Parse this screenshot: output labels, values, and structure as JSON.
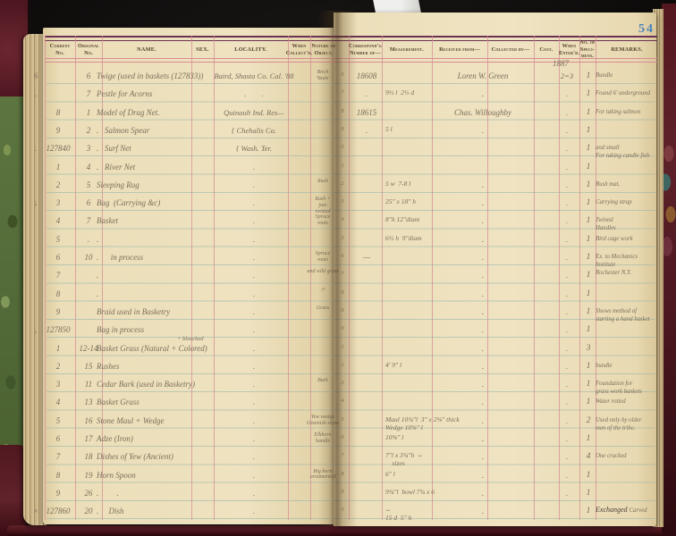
{
  "page_number": "54",
  "year_note": "1887",
  "colors": {
    "page": "#eee2c0",
    "rule_blue": "#91b2aa",
    "rule_pink": "#d98b95",
    "header_rule_dark": "#6b3152",
    "ink": "#7b6e5a",
    "page_number_blue": "#4a82b8",
    "cover_leather": "#5e2129",
    "marbled_green": "#5d7540"
  },
  "headers": {
    "current_no": "Current\nNo.",
    "original_no": "Original\nNo.",
    "name": "NAME.",
    "sex": "SEX.",
    "locality": "LOCALITY.",
    "when_collected": "When\nCollect'd.",
    "nature": "Nature of\nObject.",
    "corresp": "Correspond'g\nNumber of—",
    "measurement": "Measurement.",
    "received": "Received from—",
    "collected": "Collected by—",
    "cost": "Cost.",
    "when_entered": "When\nEnter'd.",
    "specimens": "No. of\nSpeci-\nmens.",
    "remarks": "REMARKS."
  },
  "rows": [
    {
      "m": "6",
      "orig": "6",
      "name": "Twige (used in baskets (127833))",
      "loc": "Baird, Shasta Co. Cal. '88",
      "nat": "Birch\n'Yauts'",
      "g": "6",
      "cn": "18608",
      "rc": "Loren W. Green",
      "wh": "2=3",
      "sp": "1",
      "rm": "Bundle"
    },
    {
      "m": ".",
      "orig": "7",
      "name": "Pestle for Acorns",
      "loc": ".        .",
      "g": "7",
      "cn": ".",
      "ms": "9½ l  2½ d",
      "rc": ".",
      "wh": ".",
      "sp": "1",
      "rm": "Found 6' underground"
    },
    {
      "cur": "8",
      "orig": "1",
      "name": "Model of Drag Net.",
      "loc": "Quinault Ind. Res—",
      "g": "8",
      "cn": "18615",
      "rc": "Chas. Willoughby",
      "wh": ".",
      "sp": "1",
      "rm": "For taking salmon"
    },
    {
      "cur": "9",
      "orig": "2",
      "name": ".   Salmon Spear",
      "loc": "{ Chehalis Co.",
      "g": "9",
      "cn": ".",
      "ms": "5 l",
      "rc": ".",
      "wh": ".",
      "sp": "1"
    },
    {
      "m": ".",
      "cur": "127840",
      "orig": "3",
      "name": ".   Surf Net",
      "loc": "{ Wash. Ter.",
      "g": "0",
      "wh": ".",
      "sp": "1",
      "rm": "and small\nFor taking candle fish"
    },
    {
      "cur": "1",
      "orig": "4",
      "name": ".   River Net",
      "loc": ".",
      "g": "1",
      "wh": ".",
      "sp": "1"
    },
    {
      "cur": "2",
      "orig": "5",
      "name": "Sleeping Rug",
      "nat": "Rush",
      "loc": ".",
      "g": "2",
      "ms": "5 w  7-8 l",
      "rc": ".",
      "wh": ".",
      "sp": "1",
      "rm": "Rush mat."
    },
    {
      "m": "↓",
      "cur": "3",
      "orig": "6",
      "name": "Bag  (Carrying &c)",
      "nat": "Rush +\njute\ntwisted",
      "loc": ".",
      "g": "3",
      "ms": "25″ x 18″ h",
      "rc": ".",
      "wh": ".",
      "sp": "1",
      "rm": "Carrying strap"
    },
    {
      "cur": "4",
      "orig": "7",
      "name": "Basket",
      "nat": "Spruce\nroots",
      "loc": ".",
      "g": "4",
      "ms": "8″h 12″diam",
      "rc": ".",
      "wh": ".",
      "sp": "1",
      "rm": "Twined\nHandles"
    },
    {
      "cur": "5",
      "orig": ".",
      "name": ".",
      "loc": ".",
      "g": "5",
      "ms": "6½ h  9″diam",
      "rc": ".",
      "wh": ".",
      "sp": "1",
      "rm": "Bird cage work"
    },
    {
      "cur": "6",
      "orig": "10",
      "name": ".      in process",
      "nat": "Spruce\nroots",
      "loc": ".",
      "g": "6",
      "cn": "—",
      "rc": ".",
      "wh": ".",
      "sp": "1",
      "rm": "Ex. to Mechanics\nInstitute\nRochester N.Y."
    },
    {
      "cur": "7",
      "name": ".",
      "nat": "and wild grass",
      "loc": ".",
      "g": "7",
      "rc": ".",
      "wh": ".",
      "sp": "1"
    },
    {
      "cur": "8",
      "name": ".",
      "nat": "〃",
      "loc": ".",
      "g": "8",
      "rc": ".",
      "wh": ".",
      "sp": "1"
    },
    {
      "cur": "9",
      "name": "Braid used in Basketry",
      "nat": "Grass",
      "loc": ".",
      "g": "9",
      "rc": ".",
      "wh": ".",
      "sp": "1",
      "rm": "Shows method of\nstarting a hand basket"
    },
    {
      "m": ",",
      "cur": "127850",
      "name": "Bag in process",
      "loc": ".",
      "g": "0",
      "rc": ".",
      "wh": ".",
      "sp": "1"
    },
    {
      "cur": "1",
      "orig": "12-14",
      "name": "Basket Grass (Natural + Colored)",
      "nsup": "+ bleached",
      "loc": ".",
      "g": "1",
      "rc": ".",
      "wh": ".",
      "sp": "3"
    },
    {
      "cur": "2",
      "orig": "15",
      "name": "Rushes",
      "loc": ".",
      "g": "2",
      "ms": "4′ 9″ l",
      "rc": ".",
      "wh": ".",
      "sp": "1",
      "rm": "bundle"
    },
    {
      "cur": "3",
      "orig": "11",
      "name": "Cedar Bark (used in Basketry)",
      "nat": "Bark",
      "loc": ".",
      "g": "3",
      "rc": ".",
      "wh": ".",
      "sp": "1",
      "rm": "Foundation for\ngrass work baskets"
    },
    {
      "cur": "4",
      "orig": "13",
      "name": "Basket Grass",
      "loc": ".",
      "g": "4",
      "rc": ".",
      "wh": ".",
      "sp": "1",
      "rm": "Water rotted"
    },
    {
      "cur": "5",
      "orig": "16",
      "name": "Stone Maul + Wedge",
      "nat": "Yew wedge\nGreenish stone",
      "loc": ".",
      "g": "5",
      "ms": "Maul 10¾″l  3″ x 2⅝″ thick\nWedge 10⅜″ l",
      "rc": ".",
      "wh": ".",
      "sp": "2",
      "rm": "Used only by older\nmen of the tribe."
    },
    {
      "cur": "6",
      "orig": "17",
      "name": "Adze (Iron)",
      "nat": "Elkhorn\nhandle",
      "loc": ".",
      "g": "6",
      "ms": "10⅜″ l",
      "rc": ".",
      "wh": ".",
      "sp": "1"
    },
    {
      "cur": "7",
      "orig": "18",
      "name": "Dishes of Yew (Ancient)",
      "loc": ".",
      "g": "7",
      "ms": "7″l x 3¾″h  ⌣\n    sizes",
      "rc": ".",
      "wh": ".",
      "sp": "4",
      "rm": "One cracked"
    },
    {
      "cur": "8",
      "orig": "19",
      "name": "Horn Spoon",
      "nat": "Big horn\nornamented",
      "loc": ".",
      "g": "8",
      "ms": "6″ l",
      "rc": ".",
      "wh": ".",
      "sp": "1"
    },
    {
      "cur": "9",
      "orig": "26",
      "name": ".         .",
      "loc": ".",
      "g": "9",
      "ms": "9¾″l  bowl 7¾ x 6",
      "rc": ".",
      "wh": ".",
      "sp": "1"
    },
    {
      "m": "×",
      "cur": "127860",
      "orig": "20",
      "name": ".     Dish",
      "loc": ".",
      "g": "0",
      "ms": "⌣\n15 d  5″ h",
      "rc": ".",
      "wh": "",
      "sp": "1",
      "rm": "Carved",
      "remS": "Exchanged "
    }
  ]
}
